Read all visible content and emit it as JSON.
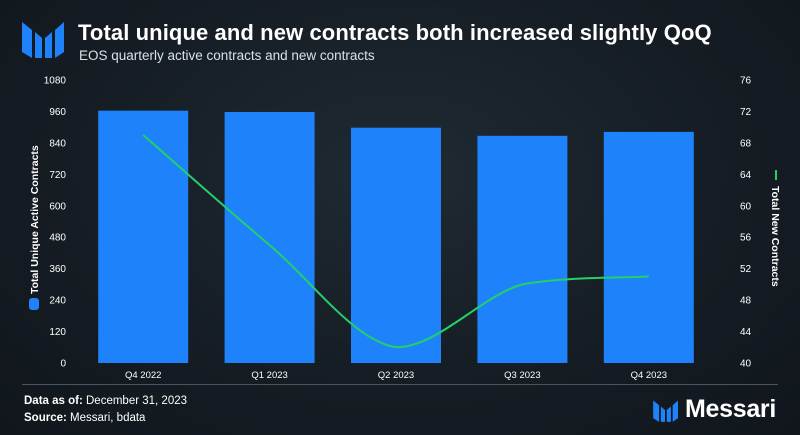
{
  "header": {
    "title": "Total unique and new contracts both increased slightly QoQ",
    "subtitle": "EOS quarterly active contracts and new contracts"
  },
  "colors": {
    "bar": "#1e82fa",
    "line": "#22d06a",
    "accent": "#1e82fa"
  },
  "chart_data": {
    "type": "bar",
    "categories": [
      "Q4 2022",
      "Q1 2023",
      "Q2 2023",
      "Q3 2023",
      "Q4 2023"
    ],
    "series": [
      {
        "name": "Total Unique Active Contracts",
        "type": "bar",
        "axis": "left",
        "values": [
          963,
          958,
          898,
          867,
          882
        ]
      },
      {
        "name": "Total New Contracts",
        "type": "line",
        "axis": "right",
        "values": [
          69,
          55,
          42,
          50,
          51
        ]
      }
    ],
    "left_axis": {
      "label": "Total Unique Active Contracts",
      "ylim": [
        0,
        1080
      ],
      "ticks": [
        0,
        120,
        240,
        360,
        480,
        600,
        720,
        840,
        960,
        1080
      ]
    },
    "right_axis": {
      "label": "Total New Contracts",
      "ylim": [
        40,
        76
      ],
      "ticks": [
        40,
        44,
        48,
        52,
        56,
        60,
        64,
        68,
        72,
        76
      ]
    },
    "grid": false
  },
  "footer": {
    "data_as_of_label": "Data as of:",
    "data_as_of_value": "December 31, 2023",
    "source_label": "Source:",
    "source_value": "Messari, bdata",
    "brand": "Messari"
  }
}
